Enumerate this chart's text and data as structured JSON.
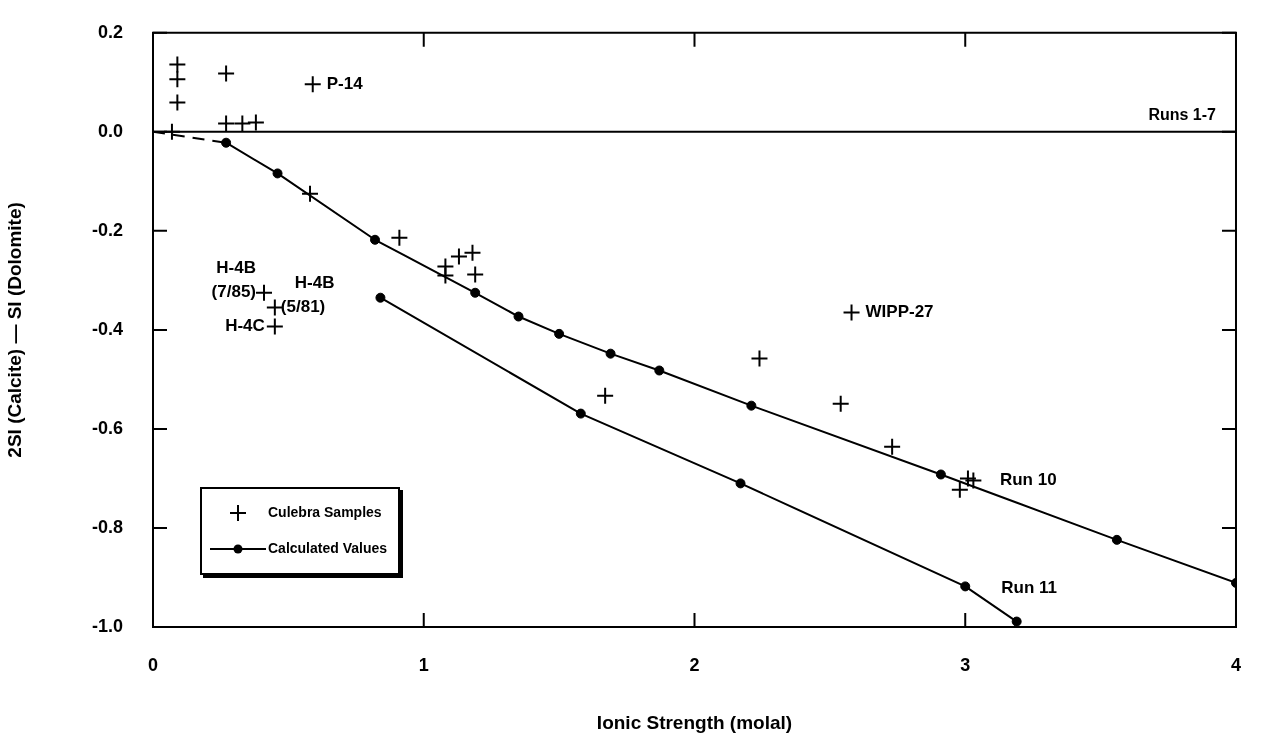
{
  "chart_data": {
    "type": "scatter",
    "xlabel": "Ionic Strength (molal)",
    "ylabel": "2SI (Calcite) — SI (Dolomite)",
    "xlim": [
      0,
      4
    ],
    "ylim": [
      -1,
      0.2
    ],
    "xticks": [
      0,
      1,
      2,
      3,
      4
    ],
    "yticks": [
      {
        "value": -1,
        "label": "-1.0"
      },
      -0.8,
      -0.6,
      -0.4,
      -0.2,
      {
        "value": 0,
        "label": "0.0"
      },
      0.2
    ],
    "legend": "bottom left",
    "series": [
      {
        "name": "Culebra Samples",
        "type": "scatter",
        "marker": "cross",
        "color": "#000000",
        "x": [
          0.09,
          0.09,
          0.09,
          0.07,
          0.27,
          0.27,
          0.33,
          0.38,
          0.59,
          0.58,
          0.91,
          1.08,
          1.08,
          1.13,
          1.18,
          1.19,
          0.41,
          0.45,
          0.45,
          2.58,
          2.24,
          1.67,
          2.54,
          2.73,
          2.98,
          3.01,
          3.03
        ],
        "values": [
          0.136,
          0.106,
          0.059,
          0.0,
          0.118,
          0.017,
          0.017,
          0.019,
          0.096,
          -0.125,
          -0.214,
          -0.272,
          -0.29,
          -0.252,
          -0.244,
          -0.288,
          -0.325,
          -0.355,
          -0.393,
          -0.365,
          -0.458,
          -0.533,
          -0.549,
          -0.636,
          -0.723,
          -0.7,
          -0.704
        ]
      },
      {
        "name": "Calculated Values",
        "type": "line",
        "marker": "circle",
        "color": "#000000",
        "x": [
          0.27,
          0.46,
          0.82,
          1.19,
          1.35,
          1.5,
          1.69,
          1.87,
          2.21,
          2.91,
          3.56,
          4.0
        ],
        "values": [
          -0.022,
          -0.084,
          -0.218,
          -0.325,
          -0.373,
          -0.408,
          -0.448,
          -0.482,
          -0.553,
          -0.692,
          -0.824,
          -0.911
        ]
      },
      {
        "type": "line",
        "marker": "circle",
        "color": "#000000",
        "x": [
          0.84,
          1.58,
          2.17,
          3.0,
          3.19
        ],
        "values": [
          -0.335,
          -0.569,
          -0.71,
          -0.918,
          -0.989
        ]
      },
      {
        "type": "line",
        "marker": "none",
        "line_style": "dashed",
        "color": "#000000",
        "x": [
          0,
          0.27
        ],
        "values": [
          0,
          -0.022
        ]
      }
    ],
    "ref_lines": [
      {
        "axis": "y",
        "value": 0,
        "label": "Runs 1-7"
      }
    ],
    "annotations": [
      {
        "text": "P-14",
        "x": 0.59,
        "y": 0.096
      },
      {
        "text": "H-4B\n(7/85)",
        "x": 0.41,
        "y": -0.325
      },
      {
        "text": "H-4B\n(5/81)",
        "x": 0.45,
        "y": -0.355
      },
      {
        "text": "H-4C",
        "x": 0.45,
        "y": -0.393
      },
      {
        "text": "WIPP-27",
        "x": 2.58,
        "y": -0.365
      },
      {
        "text": "Run 10",
        "x": 3.01,
        "y": -0.7
      },
      {
        "text": "Run 11",
        "x": 3.0,
        "y": -0.918
      }
    ]
  }
}
